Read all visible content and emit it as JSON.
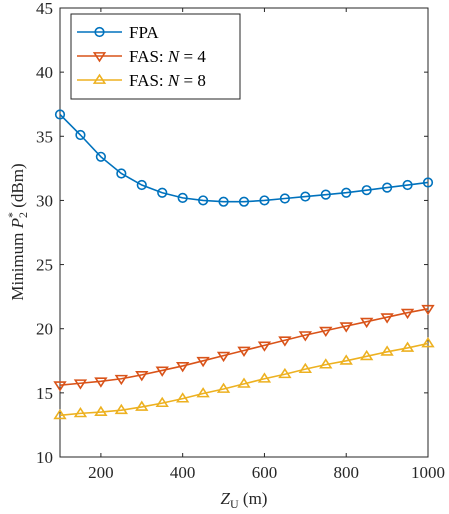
{
  "chart_data": {
    "type": "line",
    "title": "",
    "xlabel": {
      "main": "Z",
      "sub": "U",
      "unit": " (m)"
    },
    "ylabel": {
      "prefix": "Minimum ",
      "main": "P",
      "sub": "2",
      "sup": "*",
      "unit": " (dBm)"
    },
    "xlim": [
      100,
      1000
    ],
    "ylim": [
      10,
      45
    ],
    "xticks": [
      200,
      400,
      600,
      800,
      1000
    ],
    "yticks": [
      10,
      15,
      20,
      25,
      30,
      35,
      40,
      45
    ],
    "grid": false,
    "legend_position": "top-left",
    "x": [
      100,
      150,
      200,
      250,
      300,
      350,
      400,
      450,
      500,
      550,
      600,
      650,
      700,
      750,
      800,
      850,
      900,
      950,
      1000
    ],
    "series": [
      {
        "name": "FPA",
        "legend_prefix": "FPA",
        "legend_italic": "",
        "legend_suffix": "",
        "color": "#0072BD",
        "marker": "circle",
        "values": [
          36.7,
          35.1,
          33.4,
          32.1,
          31.2,
          30.6,
          30.2,
          30.0,
          29.9,
          29.9,
          30.0,
          30.15,
          30.3,
          30.45,
          30.6,
          30.8,
          31.0,
          31.2,
          31.4
        ]
      },
      {
        "name": "FAS: N = 4",
        "legend_prefix": "FAS:  ",
        "legend_italic": "N",
        "legend_suffix": " = 4",
        "color": "#D95319",
        "marker": "triangle-down",
        "values": [
          15.6,
          15.75,
          15.9,
          16.1,
          16.4,
          16.75,
          17.1,
          17.5,
          17.9,
          18.3,
          18.7,
          19.1,
          19.5,
          19.85,
          20.2,
          20.55,
          20.9,
          21.25,
          21.55
        ]
      },
      {
        "name": "FAS: N = 8",
        "legend_prefix": "FAS:  ",
        "legend_italic": "N",
        "legend_suffix": " = 8",
        "color": "#EDB120",
        "marker": "triangle-up",
        "values": [
          13.25,
          13.4,
          13.5,
          13.65,
          13.9,
          14.2,
          14.55,
          14.95,
          15.3,
          15.7,
          16.1,
          16.45,
          16.85,
          17.2,
          17.5,
          17.85,
          18.2,
          18.5,
          18.85
        ]
      }
    ]
  }
}
